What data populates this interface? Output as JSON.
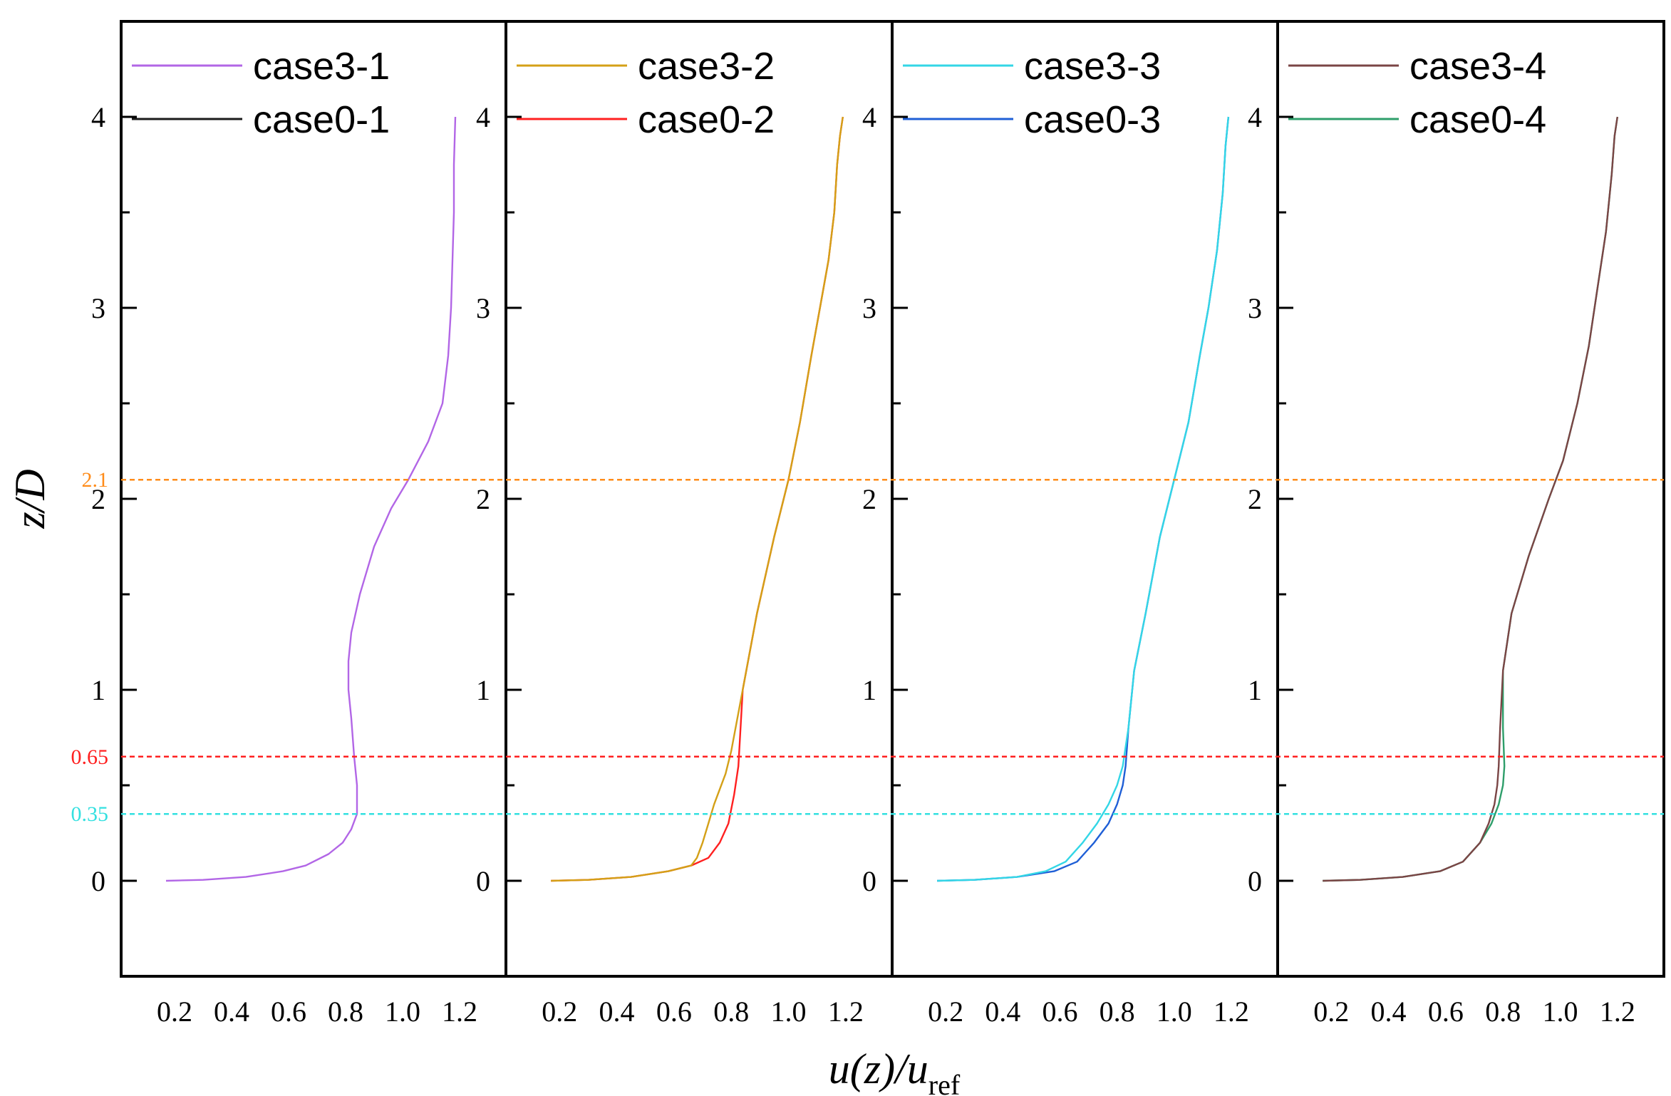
{
  "chart_data": {
    "type": "line",
    "layout": "4 side-by-side panels sharing the y axis",
    "ylabel": {
      "italic": "z/D"
    },
    "xlabel": {
      "main": "u(z)/u",
      "sub": "ref"
    },
    "ylim": [
      -0.5,
      4.5
    ],
    "xlim": [
      0.05,
      1.3
    ],
    "yticks": [
      0,
      1,
      2,
      3,
      4
    ],
    "yticks_labels": [
      "0",
      "1",
      "2",
      "3",
      "4"
    ],
    "xticks": [
      0.2,
      0.4,
      0.6,
      0.8,
      1.0,
      1.2
    ],
    "xticks_labels": [
      "0.2",
      "0.4",
      "0.6",
      "0.8",
      "1.0",
      "1.2"
    ],
    "grid": false,
    "legend_position": "top-left",
    "reference_lines": [
      {
        "y": 2.1,
        "label": "2.1",
        "color": "#ff8c1a"
      },
      {
        "y": 0.65,
        "label": "0.65",
        "color": "#ff2020"
      },
      {
        "y": 0.35,
        "label": "0.35",
        "color": "#33e0e0"
      }
    ],
    "panels": [
      {
        "series": [
          {
            "name": "case3-1",
            "color": "#b266e6",
            "x": [
              0.17,
              0.3,
              0.45,
              0.58,
              0.66,
              0.74,
              0.79,
              0.82,
              0.84,
              0.84,
              0.83,
              0.82,
              0.81,
              0.81,
              0.82,
              0.85,
              0.9,
              0.96,
              1.02,
              1.09,
              1.14,
              1.16,
              1.17,
              1.175,
              1.18,
              1.18,
              1.185
            ],
            "z": [
              0.0,
              0.005,
              0.02,
              0.05,
              0.08,
              0.14,
              0.2,
              0.27,
              0.35,
              0.5,
              0.65,
              0.85,
              1.0,
              1.15,
              1.3,
              1.5,
              1.75,
              1.95,
              2.1,
              2.3,
              2.5,
              2.75,
              3.0,
              3.25,
              3.5,
              3.75,
              4.0
            ]
          },
          {
            "name": "case0-1",
            "color": "#1a1a1a",
            "x": [],
            "z": []
          }
        ]
      },
      {
        "series": [
          {
            "name": "case3-2",
            "color": "#d4a017",
            "x": [
              0.17,
              0.3,
              0.45,
              0.58,
              0.66,
              0.68,
              0.7,
              0.72,
              0.74,
              0.76,
              0.78,
              0.79,
              0.8,
              0.84,
              0.89,
              0.95,
              1.0,
              1.04,
              1.08,
              1.11,
              1.14,
              1.16,
              1.17,
              1.18,
              1.19
            ],
            "z": [
              0.0,
              0.005,
              0.02,
              0.05,
              0.08,
              0.12,
              0.2,
              0.3,
              0.4,
              0.48,
              0.56,
              0.62,
              0.68,
              1.0,
              1.4,
              1.8,
              2.1,
              2.4,
              2.75,
              3.0,
              3.25,
              3.5,
              3.75,
              3.9,
              4.0
            ]
          },
          {
            "name": "case0-2",
            "color": "#ff2020",
            "x": [
              0.17,
              0.3,
              0.45,
              0.58,
              0.66,
              0.72,
              0.76,
              0.79,
              0.81,
              0.825,
              0.84,
              0.89,
              0.95,
              1.0,
              1.04,
              1.08,
              1.11,
              1.14,
              1.16,
              1.17,
              1.18,
              1.19
            ],
            "z": [
              0.0,
              0.005,
              0.02,
              0.05,
              0.08,
              0.12,
              0.2,
              0.3,
              0.45,
              0.6,
              1.0,
              1.4,
              1.8,
              2.1,
              2.4,
              2.75,
              3.0,
              3.25,
              3.5,
              3.75,
              3.9,
              4.0
            ]
          }
        ]
      },
      {
        "series": [
          {
            "name": "case3-3",
            "color": "#33d6e6",
            "x": [
              0.17,
              0.3,
              0.45,
              0.55,
              0.62,
              0.68,
              0.73,
              0.77,
              0.8,
              0.82,
              0.84,
              0.86,
              0.9,
              0.95,
              1.0,
              1.05,
              1.09,
              1.12,
              1.15,
              1.17,
              1.18,
              1.19
            ],
            "z": [
              0.0,
              0.005,
              0.02,
              0.05,
              0.1,
              0.2,
              0.3,
              0.4,
              0.5,
              0.6,
              0.8,
              1.1,
              1.4,
              1.8,
              2.1,
              2.4,
              2.75,
              3.0,
              3.3,
              3.6,
              3.85,
              4.0
            ]
          },
          {
            "name": "case0-3",
            "color": "#1f5fd6",
            "x": [
              0.17,
              0.3,
              0.45,
              0.58,
              0.66,
              0.72,
              0.77,
              0.8,
              0.82,
              0.83,
              0.84,
              0.86,
              0.9,
              0.95,
              1.0,
              1.05,
              1.09,
              1.12,
              1.15,
              1.17,
              1.18,
              1.19
            ],
            "z": [
              0.0,
              0.005,
              0.02,
              0.05,
              0.1,
              0.2,
              0.3,
              0.4,
              0.5,
              0.6,
              0.8,
              1.1,
              1.4,
              1.8,
              2.1,
              2.4,
              2.75,
              3.0,
              3.3,
              3.6,
              3.85,
              4.0
            ]
          }
        ]
      },
      {
        "series": [
          {
            "name": "case3-4",
            "color": "#7a4545",
            "x": [
              0.17,
              0.3,
              0.45,
              0.58,
              0.66,
              0.72,
              0.75,
              0.77,
              0.78,
              0.785,
              0.79,
              0.8,
              0.83,
              0.89,
              0.96,
              1.01,
              1.06,
              1.1,
              1.13,
              1.16,
              1.18,
              1.19,
              1.2
            ],
            "z": [
              0.0,
              0.005,
              0.02,
              0.05,
              0.1,
              0.2,
              0.3,
              0.4,
              0.5,
              0.6,
              0.8,
              1.1,
              1.4,
              1.7,
              2.0,
              2.2,
              2.5,
              2.8,
              3.1,
              3.4,
              3.7,
              3.9,
              4.0
            ]
          },
          {
            "name": "case0-4",
            "color": "#2e9e6a",
            "x": [
              0.17,
              0.3,
              0.45,
              0.58,
              0.66,
              0.72,
              0.76,
              0.785,
              0.8,
              0.805,
              0.8,
              0.8,
              0.83,
              0.89,
              0.96,
              1.01,
              1.06,
              1.1,
              1.13,
              1.16,
              1.18,
              1.19,
              1.2
            ],
            "z": [
              0.0,
              0.005,
              0.02,
              0.05,
              0.1,
              0.2,
              0.3,
              0.4,
              0.5,
              0.6,
              0.8,
              1.1,
              1.4,
              1.7,
              2.0,
              2.2,
              2.5,
              2.8,
              3.1,
              3.4,
              3.7,
              3.9,
              4.0
            ]
          }
        ]
      }
    ]
  }
}
